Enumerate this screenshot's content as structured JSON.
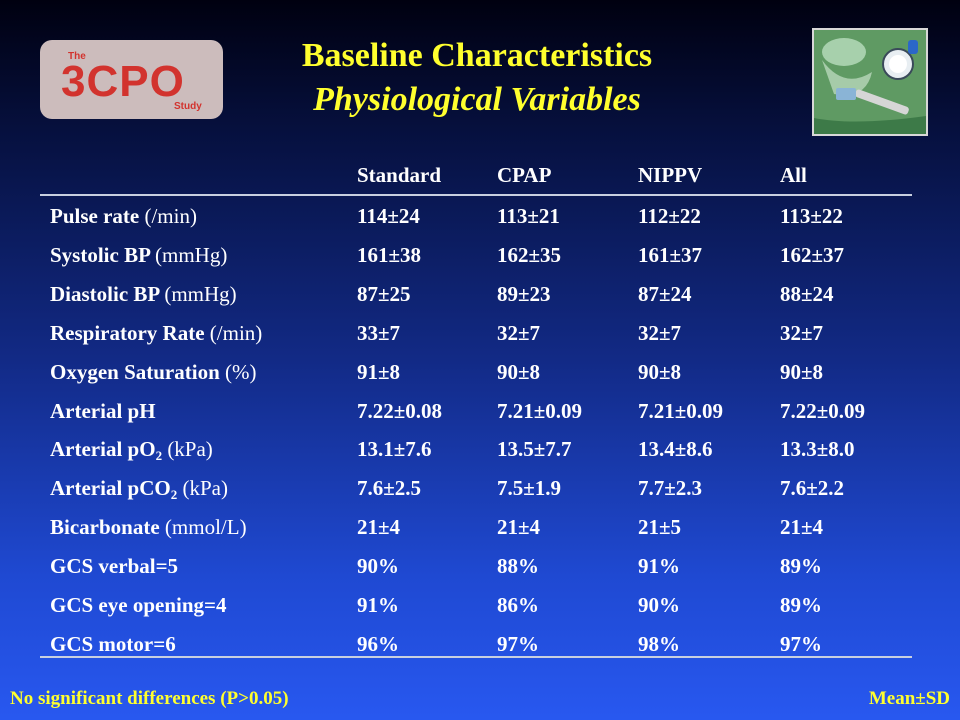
{
  "logo": {
    "small_top": "The",
    "brand": "3CPO",
    "small_bottom": "Study"
  },
  "title": {
    "line1": "Baseline Characteristics",
    "line2": "Physiological Variables"
  },
  "table": {
    "columns": [
      "Standard",
      "CPAP",
      "NIPPV",
      "All"
    ],
    "rows": [
      {
        "label": "Pulse rate",
        "unit": "(/min)",
        "values": [
          "114±24",
          "113±21",
          "112±22",
          "113±22"
        ]
      },
      {
        "label": "Systolic BP",
        "unit": "(mmHg)",
        "values": [
          "161±38",
          "162±35",
          "161±37",
          "162±37"
        ]
      },
      {
        "label": "Diastolic BP",
        "unit": "(mmHg)",
        "values": [
          "87±25",
          "89±23",
          "87±24",
          "88±24"
        ]
      },
      {
        "label": "Respiratory Rate",
        "unit": "(/min)",
        "values": [
          "33±7",
          "32±7",
          "32±7",
          "32±7"
        ]
      },
      {
        "label": "Oxygen Saturation",
        "unit": "(%)",
        "values": [
          "91±8",
          "90±8",
          "90±8",
          "90±8"
        ]
      },
      {
        "label": "Arterial pH",
        "unit": "",
        "values": [
          "7.22±0.08",
          "7.21±0.09",
          "7.21±0.09",
          "7.22±0.09"
        ]
      },
      {
        "label": "Arterial pO",
        "sub": "2",
        "unit": "(kPa)",
        "values": [
          "13.1±7.6",
          "13.5±7.7",
          "13.4±8.6",
          "13.3±8.0"
        ]
      },
      {
        "label": "Arterial pCO",
        "sub": "2",
        "unit": "(kPa)",
        "values": [
          "7.6±2.5",
          "7.5±1.9",
          "7.7±2.3",
          "7.6±2.2"
        ]
      },
      {
        "label": "Bicarbonate",
        "unit": "(mmol/L)",
        "values": [
          "21±4",
          "21±4",
          "21±5",
          "21±4"
        ]
      },
      {
        "label": "GCS verbal=5",
        "unit": "",
        "values": [
          "90%",
          "88%",
          "91%",
          "89%"
        ]
      },
      {
        "label": "GCS eye opening=4",
        "unit": "",
        "values": [
          "91%",
          "86%",
          "90%",
          "89%"
        ]
      },
      {
        "label": "GCS motor=6",
        "unit": "",
        "values": [
          "96%",
          "97%",
          "98%",
          "97%"
        ]
      }
    ]
  },
  "footer": {
    "left": "No significant differences (P>0.05)",
    "right": "Mean±SD"
  },
  "colors": {
    "title": "#ffff2e",
    "logo_bg": "#ccbcbc",
    "logo_text": "#d2332e",
    "text": "#ffffff"
  },
  "icons": {
    "photo": "cpap-equipment-photo"
  }
}
